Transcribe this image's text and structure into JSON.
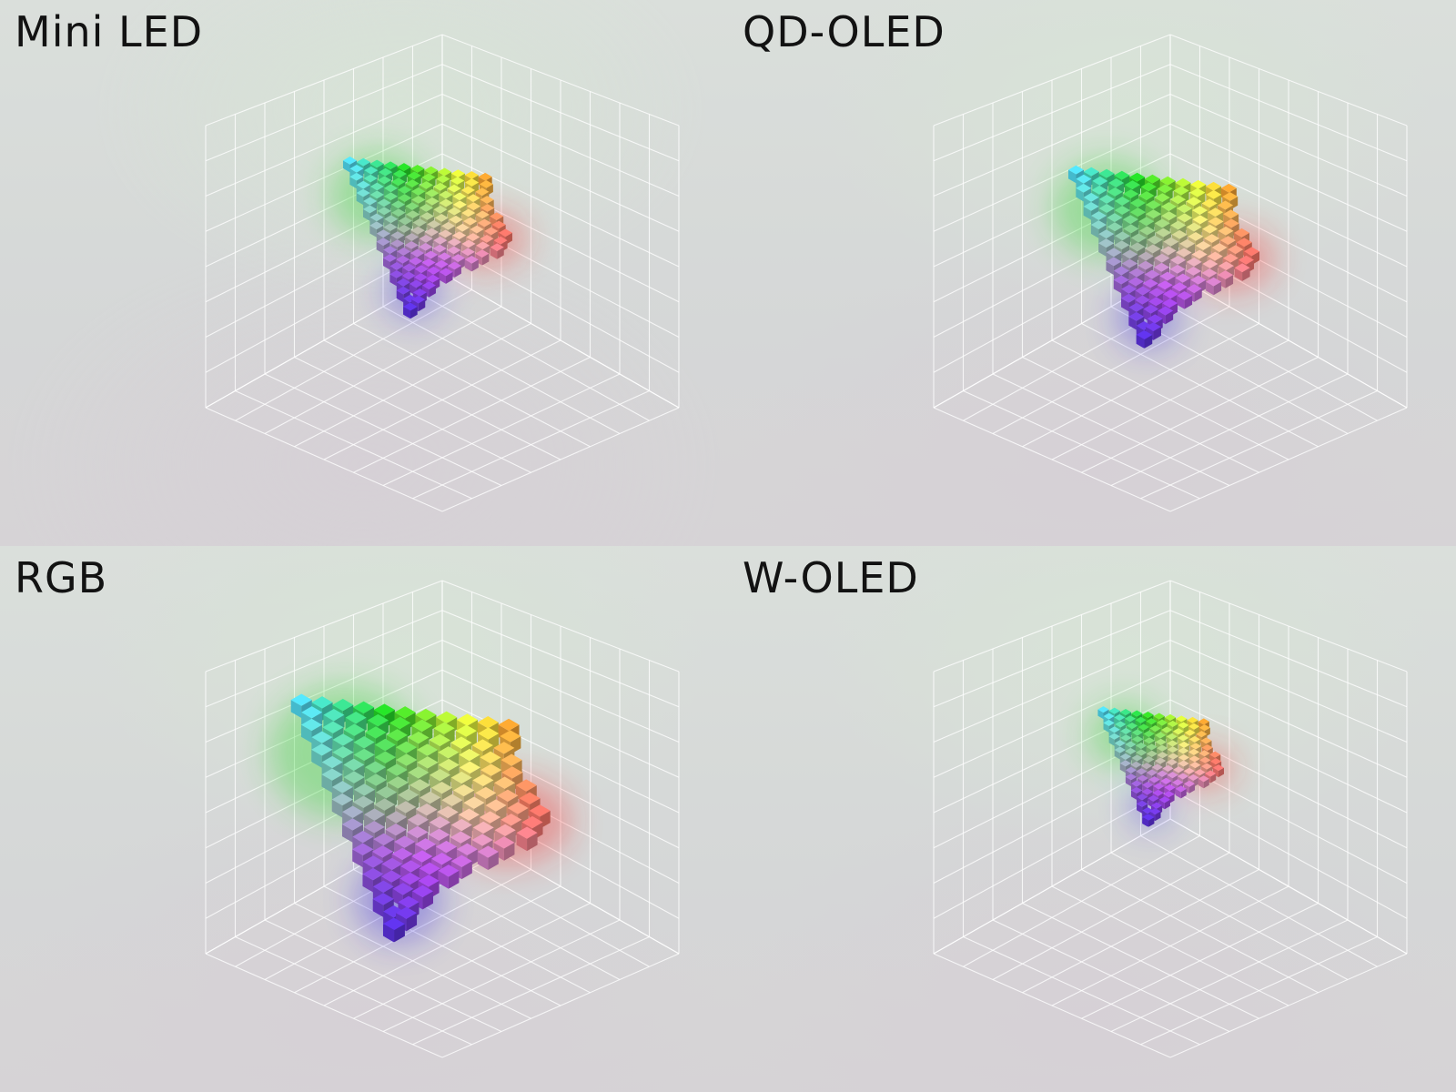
{
  "panels": [
    {
      "id": "mini-led",
      "title": "Mini LED",
      "gamut_scale": 0.62,
      "gamut_offset": [
        -0.02,
        0.0
      ]
    },
    {
      "id": "qd-oled",
      "title": "QD-OLED",
      "gamut_scale": 0.7,
      "gamut_offset": [
        0.0,
        0.04
      ]
    },
    {
      "id": "rgb",
      "title": "RGB",
      "gamut_scale": 0.95,
      "gamut_offset": [
        -0.05,
        0.0
      ]
    },
    {
      "id": "w-oled",
      "title": "W-OLED",
      "gamut_scale": 0.46,
      "gamut_offset": [
        0.0,
        0.0
      ]
    }
  ],
  "colors": {
    "background": "#d8dbd9",
    "grid_line": "#ffffff",
    "title_text": "#121212",
    "green": "#22d622",
    "cyan": "#4fd8ee",
    "yellow": "#e6f03a",
    "white": "#f2eef5",
    "magenta": "#e95be0",
    "red": "#ff1e1e",
    "blue": "#2d1ce6"
  }
}
